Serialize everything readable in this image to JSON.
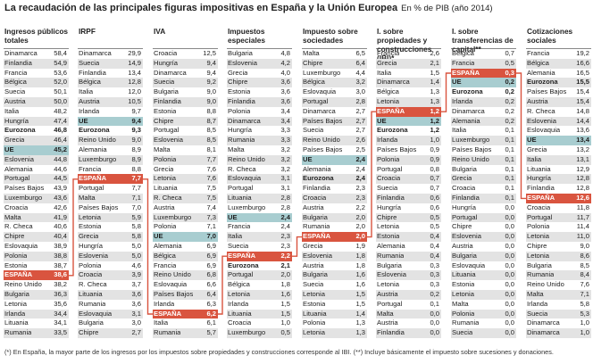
{
  "title": {
    "main": "La recaudación de las principales figuras impositivas en España y la Unión Europea",
    "unit": "En % de PIB (año 2014)"
  },
  "footnote": "(*) En España, la mayor parte de los ingresos por los impuestos sobre propiedades y construcciones corresponde al IBI. (**) Incluye básicamente el impuesto sobre sucesiones y donaciones.",
  "colors": {
    "highlight_spain": "#d9543f",
    "highlight_eu": "#a8cdd0",
    "stripe": "#e3e3e3"
  },
  "chart_data": {
    "type": "table",
    "title": "La recaudación de las principales figuras impositivas en España y la Unión Europea",
    "unit": "% de PIB (año 2014)",
    "columns": [
      {
        "header": "Ingresos públicos totales",
        "rows": [
          [
            "Dinamarca",
            "58,4"
          ],
          [
            "Finlandia",
            "54,9"
          ],
          [
            "Francia",
            "53,6"
          ],
          [
            "Bélgica",
            "52,0"
          ],
          [
            "Suecia",
            "50,1"
          ],
          [
            "Austria",
            "50,0"
          ],
          [
            "Italia",
            "48,2"
          ],
          [
            "Hungría",
            "47,4"
          ],
          [
            "Eurozona",
            "46,8"
          ],
          [
            "Grecia",
            "46,4"
          ],
          [
            "UE",
            "45,2"
          ],
          [
            "Eslovenia",
            "44,8"
          ],
          [
            "Alemania",
            "44,6"
          ],
          [
            "Portugal",
            "44,5"
          ],
          [
            "Países Bajos",
            "43,9"
          ],
          [
            "Luxemburgo",
            "43,6"
          ],
          [
            "Croacia",
            "42,6"
          ],
          [
            "Malta",
            "41,9"
          ],
          [
            "R. Checa",
            "40,6"
          ],
          [
            "Chipre",
            "40,4"
          ],
          [
            "Eslovaquia",
            "38,9"
          ],
          [
            "Polonia",
            "38,8"
          ],
          [
            "Estonia",
            "38,7"
          ],
          [
            "España",
            "38,6"
          ],
          [
            "Reino Unido",
            "38,2"
          ],
          [
            "Bulgaria",
            "36,3"
          ],
          [
            "Letonia",
            "35,6"
          ],
          [
            "Irlanda",
            "34,4"
          ],
          [
            "Lituania",
            "34,1"
          ],
          [
            "Rumania",
            "33,5"
          ]
        ]
      },
      {
        "header": "IRPF",
        "rows": [
          [
            "Dinamarca",
            "29,9"
          ],
          [
            "Suecia",
            "14,9"
          ],
          [
            "Finlandia",
            "13,4"
          ],
          [
            "Bélgica",
            "12,8"
          ],
          [
            "Italia",
            "12,0"
          ],
          [
            "Austria",
            "10,5"
          ],
          [
            "Irlanda",
            "9,7"
          ],
          [
            "UE",
            "9,4"
          ],
          [
            "Eurozona",
            "9,3"
          ],
          [
            "Reino Unido",
            "9,0"
          ],
          [
            "Alemania",
            "8,9"
          ],
          [
            "Luxemburgo",
            "8,9"
          ],
          [
            "Francia",
            "8,8"
          ],
          [
            "España",
            "7,7"
          ],
          [
            "Portugal",
            "7,7"
          ],
          [
            "Malta",
            "7,1"
          ],
          [
            "Países Bajos",
            "7,0"
          ],
          [
            "Letonia",
            "5,9"
          ],
          [
            "Estonia",
            "5,8"
          ],
          [
            "Grecia",
            "5,8"
          ],
          [
            "Hungría",
            "5,0"
          ],
          [
            "Eslovenia",
            "5,0"
          ],
          [
            "Polonia",
            "4,6"
          ],
          [
            "Croacia",
            "3,9"
          ],
          [
            "R. Checa",
            "3,7"
          ],
          [
            "Lituania",
            "3,6"
          ],
          [
            "Rumania",
            "3,6"
          ],
          [
            "Eslovaquia",
            "3,1"
          ],
          [
            "Bulgaria",
            "3,0"
          ],
          [
            "Chipre",
            "2,7"
          ]
        ]
      },
      {
        "header": "IVA",
        "rows": [
          [
            "Croacia",
            "12,5"
          ],
          [
            "Hungría",
            "9,4"
          ],
          [
            "Dinamarca",
            "9,4"
          ],
          [
            "Suecia",
            "9,2"
          ],
          [
            "Bulgaria",
            "9,0"
          ],
          [
            "Finlandia",
            "9,0"
          ],
          [
            "Estonia",
            "8,8"
          ],
          [
            "Chipre",
            "8,7"
          ],
          [
            "Portugal",
            "8,5"
          ],
          [
            "Eslovenia",
            "8,5"
          ],
          [
            "Malta",
            "8,1"
          ],
          [
            "Polonia",
            "7,7"
          ],
          [
            "Grecia",
            "7,6"
          ],
          [
            "Letonia",
            "7,6"
          ],
          [
            "Lituania",
            "7,5"
          ],
          [
            "R. Checa",
            "7,5"
          ],
          [
            "Austria",
            "7,4"
          ],
          [
            "Luxemburgo",
            "7,3"
          ],
          [
            "Polonia",
            "7,1"
          ],
          [
            "UE",
            "7,0"
          ],
          [
            "Alemania",
            "6,9"
          ],
          [
            "Bélgica",
            "6,9"
          ],
          [
            "Francia",
            "6,9"
          ],
          [
            "Reino Unido",
            "6,8"
          ],
          [
            "Eslovaquia",
            "6,6"
          ],
          [
            "Países Bajos",
            "6,4"
          ],
          [
            "Irlanda",
            "6,3"
          ],
          [
            "España",
            "6,2"
          ],
          [
            "Italia",
            "6,1"
          ],
          [
            "Rumania",
            "5,7"
          ]
        ]
      },
      {
        "header": "Impuestos especiales",
        "rows": [
          [
            "Bulgaria",
            "4,8"
          ],
          [
            "Eslovenia",
            "4,2"
          ],
          [
            "Grecia",
            "4,0"
          ],
          [
            "Chipre",
            "3,6"
          ],
          [
            "Estonia",
            "3,6"
          ],
          [
            "Finlandia",
            "3,6"
          ],
          [
            "Polonia",
            "3,4"
          ],
          [
            "Dinamarca",
            "3,4"
          ],
          [
            "Hungría",
            "3,3"
          ],
          [
            "Rumania",
            "3,3"
          ],
          [
            "Malta",
            "3,2"
          ],
          [
            "Reino Unido",
            "3,2"
          ],
          [
            "R. Checa",
            "3,2"
          ],
          [
            "Eslovaquia",
            "3,1"
          ],
          [
            "Portugal",
            "3,1"
          ],
          [
            "Lituania",
            "2,8"
          ],
          [
            "Luxemburgo",
            "2,8"
          ],
          [
            "UE",
            "2,4"
          ],
          [
            "Francia",
            "2,4"
          ],
          [
            "Italia",
            "2,3"
          ],
          [
            "Suecia",
            "2,3"
          ],
          [
            "España",
            "2,2"
          ],
          [
            "Eurozona",
            "2,1"
          ],
          [
            "Portugal",
            "2,0"
          ],
          [
            "Bélgica",
            "1,8"
          ],
          [
            "Letonia",
            "1,6"
          ],
          [
            "Irlanda",
            "1,5"
          ],
          [
            "Lituania",
            "1,5"
          ],
          [
            "Croacia",
            "1,0"
          ],
          [
            "Luxemburgo",
            "0,5"
          ]
        ]
      },
      {
        "header": "Impuesto sobre sociedades",
        "rows": [
          [
            "Malta",
            "6,5"
          ],
          [
            "Chipre",
            "6,4"
          ],
          [
            "Luxemburgo",
            "4,4"
          ],
          [
            "Bélgica",
            "3,2"
          ],
          [
            "Eslovaquia",
            "3,0"
          ],
          [
            "Portugal",
            "2,8"
          ],
          [
            "Dinamarca",
            "2,7"
          ],
          [
            "Países Bajos",
            "2,7"
          ],
          [
            "Suecia",
            "2,7"
          ],
          [
            "Reino Unido",
            "2,6"
          ],
          [
            "Países Bajos",
            "2,5"
          ],
          [
            "UE",
            "2,4"
          ],
          [
            "Alemania",
            "2,4"
          ],
          [
            "Eurozona",
            "2,4"
          ],
          [
            "Finlandia",
            "2,3"
          ],
          [
            "Croacia",
            "2,3"
          ],
          [
            "Austria",
            "2,2"
          ],
          [
            "Bulgaria",
            "2,0"
          ],
          [
            "Rumania",
            "2,0"
          ],
          [
            "España",
            "2,0"
          ],
          [
            "Grecia",
            "1,9"
          ],
          [
            "Eslovenia",
            "1,8"
          ],
          [
            "Austria",
            "1,8"
          ],
          [
            "Bulgaria",
            "1,6"
          ],
          [
            "Suecia",
            "1,6"
          ],
          [
            "Letonia",
            "1,5"
          ],
          [
            "Estonia",
            "1,5"
          ],
          [
            "Lituania",
            "1,4"
          ],
          [
            "Polonia",
            "1,3"
          ],
          [
            "Letonia",
            "1,3"
          ]
        ]
      },
      {
        "header": "I. sobre propiedades y construcciones (IBI)*",
        "rows": [
          [
            "Francia",
            "2,6"
          ],
          [
            "Grecia",
            "2,1"
          ],
          [
            "Italia",
            "1,5"
          ],
          [
            "Dinamarca",
            "1,4"
          ],
          [
            "Bélgica",
            "1,3"
          ],
          [
            "Letonia",
            "1,3"
          ],
          [
            "España",
            "1,2"
          ],
          [
            "UE",
            "1,2"
          ],
          [
            "Eurozona",
            "1,2"
          ],
          [
            "Irlanda",
            "1,0"
          ],
          [
            "Países Bajos",
            "0,9"
          ],
          [
            "Polonia",
            "0,9"
          ],
          [
            "Portugal",
            "0,8"
          ],
          [
            "Croacia",
            "0,7"
          ],
          [
            "Suecia",
            "0,7"
          ],
          [
            "Finlandia",
            "0,6"
          ],
          [
            "Hungría",
            "0,6"
          ],
          [
            "Chipre",
            "0,5"
          ],
          [
            "Letonia",
            "0,5"
          ],
          [
            "Estonia",
            "0,4"
          ],
          [
            "Alemania",
            "0,4"
          ],
          [
            "Rumania",
            "0,4"
          ],
          [
            "Bulgaria",
            "0,3"
          ],
          [
            "Eslovenia",
            "0,3"
          ],
          [
            "Letonia",
            "0,3"
          ],
          [
            "Austria",
            "0,2"
          ],
          [
            "Portugal",
            "0,1"
          ],
          [
            "Malta",
            "0,0"
          ],
          [
            "Austria",
            "0,0"
          ],
          [
            "Finlandia",
            "0,0"
          ]
        ]
      },
      {
        "header": "I. sobre transferencias de capital**",
        "rows": [
          [
            "Bélgica",
            "0,7"
          ],
          [
            "Francia",
            "0,5"
          ],
          [
            "España",
            "0,3"
          ],
          [
            "UE",
            "0,2"
          ],
          [
            "Eurozona",
            "0,2"
          ],
          [
            "Irlanda",
            "0,2"
          ],
          [
            "Dinamarca",
            "0,2"
          ],
          [
            "Alemania",
            "0,2"
          ],
          [
            "Italia",
            "0,1"
          ],
          [
            "Luxemburgo",
            "0,1"
          ],
          [
            "Países Bajos",
            "0,1"
          ],
          [
            "Reino Unido",
            "0,1"
          ],
          [
            "Bulgaria",
            "0,1"
          ],
          [
            "Grecia",
            "0,1"
          ],
          [
            "Croacia",
            "0,1"
          ],
          [
            "Finlandia",
            "0,1"
          ],
          [
            "Hungría",
            "0,0"
          ],
          [
            "Portugal",
            "0,0"
          ],
          [
            "Chipre",
            "0,0"
          ],
          [
            "Eslovenia",
            "0,0"
          ],
          [
            "Austria",
            "0,0"
          ],
          [
            "Bulgaria",
            "0,0"
          ],
          [
            "Eslovaquia",
            "0,0"
          ],
          [
            "Lituania",
            "0,0"
          ],
          [
            "Estonia",
            "0,0"
          ],
          [
            "Letonia",
            "0,0"
          ],
          [
            "Malta",
            "0,0"
          ],
          [
            "Polonia",
            "0,0"
          ],
          [
            "Rumania",
            "0,0"
          ],
          [
            "Suecia",
            "0,0"
          ]
        ]
      },
      {
        "header": "Cotizaciones sociales",
        "rows": [
          [
            "Francia",
            "19,2"
          ],
          [
            "Bélgica",
            "16,6"
          ],
          [
            "Alemania",
            "16,5"
          ],
          [
            "Eurozona",
            "15,5"
          ],
          [
            "Países Bajos",
            "15,4"
          ],
          [
            "Austria",
            "15,4"
          ],
          [
            "R. Checa",
            "14,8"
          ],
          [
            "Eslovenia",
            "14,4"
          ],
          [
            "Eslovaquia",
            "13,6"
          ],
          [
            "UE",
            "13,4"
          ],
          [
            "Grecia",
            "13,2"
          ],
          [
            "Italia",
            "13,1"
          ],
          [
            "Lituania",
            "12,9"
          ],
          [
            "Hungría",
            "12,8"
          ],
          [
            "Finlandia",
            "12,8"
          ],
          [
            "España",
            "12,6"
          ],
          [
            "Croacia",
            "11,8"
          ],
          [
            "Portugal",
            "11,7"
          ],
          [
            "Polonia",
            "11,4"
          ],
          [
            "Letonia",
            "11,0"
          ],
          [
            "Chipre",
            "9,0"
          ],
          [
            "Letonia",
            "8,6"
          ],
          [
            "Bulgaria",
            "8,5"
          ],
          [
            "Rumania",
            "8,4"
          ],
          [
            "Reino Unido",
            "7,6"
          ],
          [
            "Malta",
            "7,1"
          ],
          [
            "Irlanda",
            "5,8"
          ],
          [
            "Suecia",
            "5,3"
          ],
          [
            "Dinamarca",
            "1,0"
          ],
          [
            "Dinamarca",
            "1,0"
          ]
        ]
      }
    ]
  }
}
